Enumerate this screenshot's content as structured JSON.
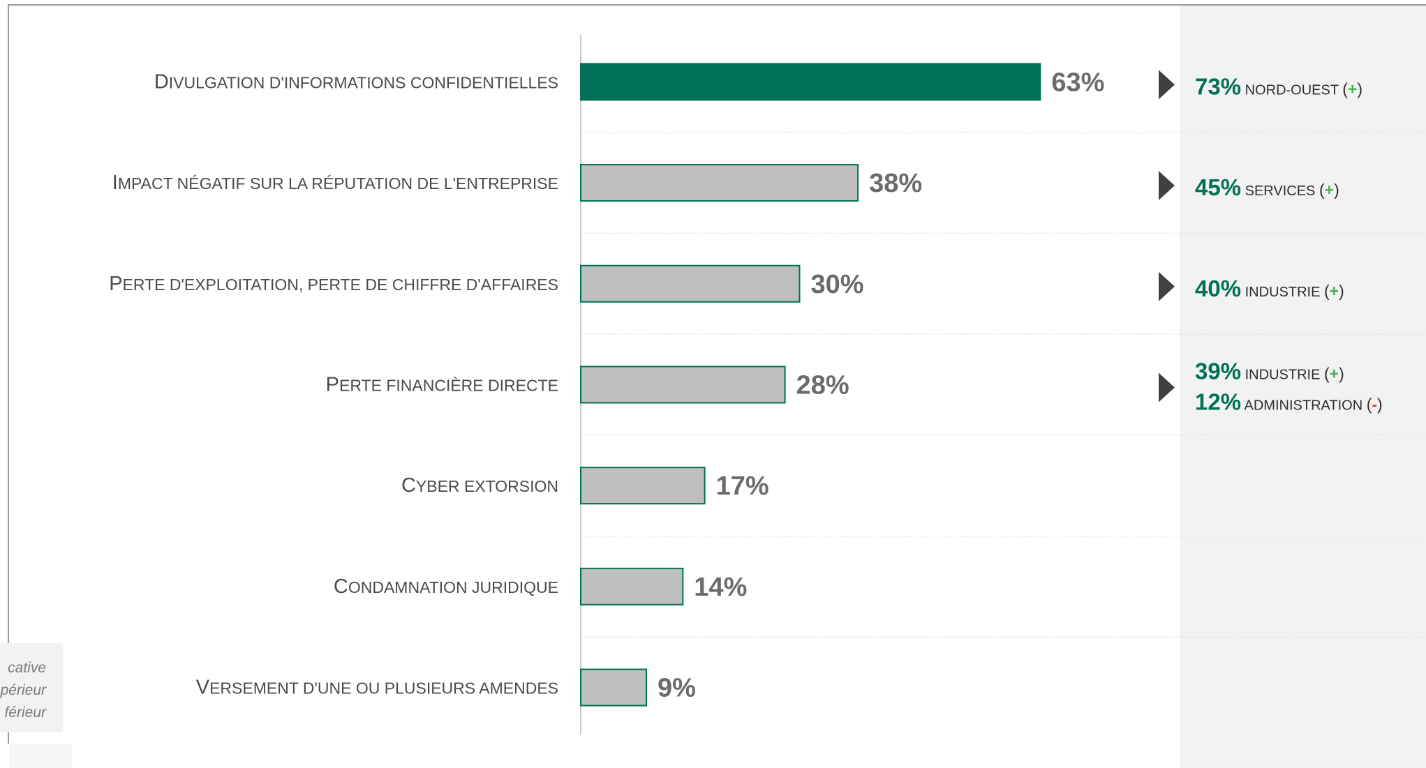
{
  "legend": {
    "lines": [
      "cative",
      "périeur",
      "férieur"
    ]
  },
  "colors": {
    "highlight_bar": "#007056",
    "default_bar": "#bfbfbf",
    "bar_border": "#007056",
    "axis": "#c8c8c8",
    "separator": "#d9d9d9",
    "value_label": "#6b6b6b",
    "highlight_pct": "#007056",
    "sign_positive": "#4caf50",
    "sign_negative": "#e03a3a",
    "arrow": "#404040"
  },
  "chart_data": {
    "type": "bar",
    "orientation": "horizontal",
    "categories": [
      "Divulgation d'informations confidentielles",
      "Impact négatif sur la réputation de l'entreprise",
      "Perte d'exploitation, perte de chiffre d'affaires",
      "Perte financière directe",
      "Cyber extorsion",
      "Condamnation juridique",
      "Versement d'une ou plusieurs amendes"
    ],
    "values": [
      63,
      38,
      30,
      28,
      17,
      14,
      9
    ],
    "value_labels": [
      "63%",
      "38%",
      "30%",
      "28%",
      "17%",
      "14%",
      "9%"
    ],
    "highlighted_index": 0,
    "unit": "%",
    "xlim": [
      0,
      100
    ],
    "grid": false,
    "highlights": [
      {
        "row": 0,
        "items": [
          {
            "pct": "73%",
            "segment": "nord-ouest",
            "sign": "+"
          }
        ]
      },
      {
        "row": 1,
        "items": [
          {
            "pct": "45%",
            "segment": "services",
            "sign": "+"
          }
        ]
      },
      {
        "row": 2,
        "items": [
          {
            "pct": "40%",
            "segment": "industrie",
            "sign": "+"
          }
        ]
      },
      {
        "row": 3,
        "items": [
          {
            "pct": "39%",
            "segment": "industrie",
            "sign": "+"
          },
          {
            "pct": "12%",
            "segment": "administration",
            "sign": "-"
          }
        ]
      }
    ]
  }
}
